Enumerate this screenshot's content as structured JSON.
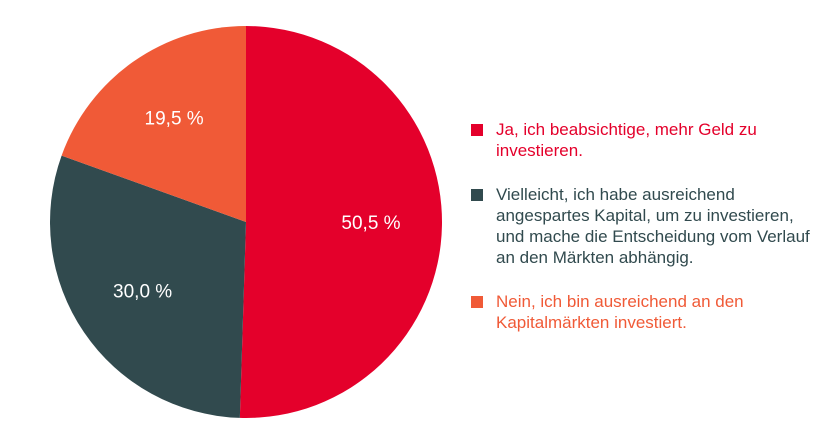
{
  "chart_data": {
    "type": "pie",
    "slices": [
      {
        "label": "Ja, ich beabsichtige, mehr Geld zu investieren.",
        "value": 50.5,
        "display": "50,5 %",
        "color": "#e4002b"
      },
      {
        "label": "Vielleicht, ich habe ausreichend angespartes Kapital, um zu investieren, und mache die Entscheidung vom Verlauf an den Märkten abhängig.",
        "value": 30.0,
        "display": "30,0 %",
        "color": "#314a4e"
      },
      {
        "label": "Nein, ich bin ausreichend an den Kapitalmärkten investiert.",
        "value": 19.5,
        "display": "19,5 %",
        "color": "#f05a37"
      }
    ],
    "start_angle": "12 o'clock",
    "direction": "clockwise",
    "legend_position": "right"
  }
}
